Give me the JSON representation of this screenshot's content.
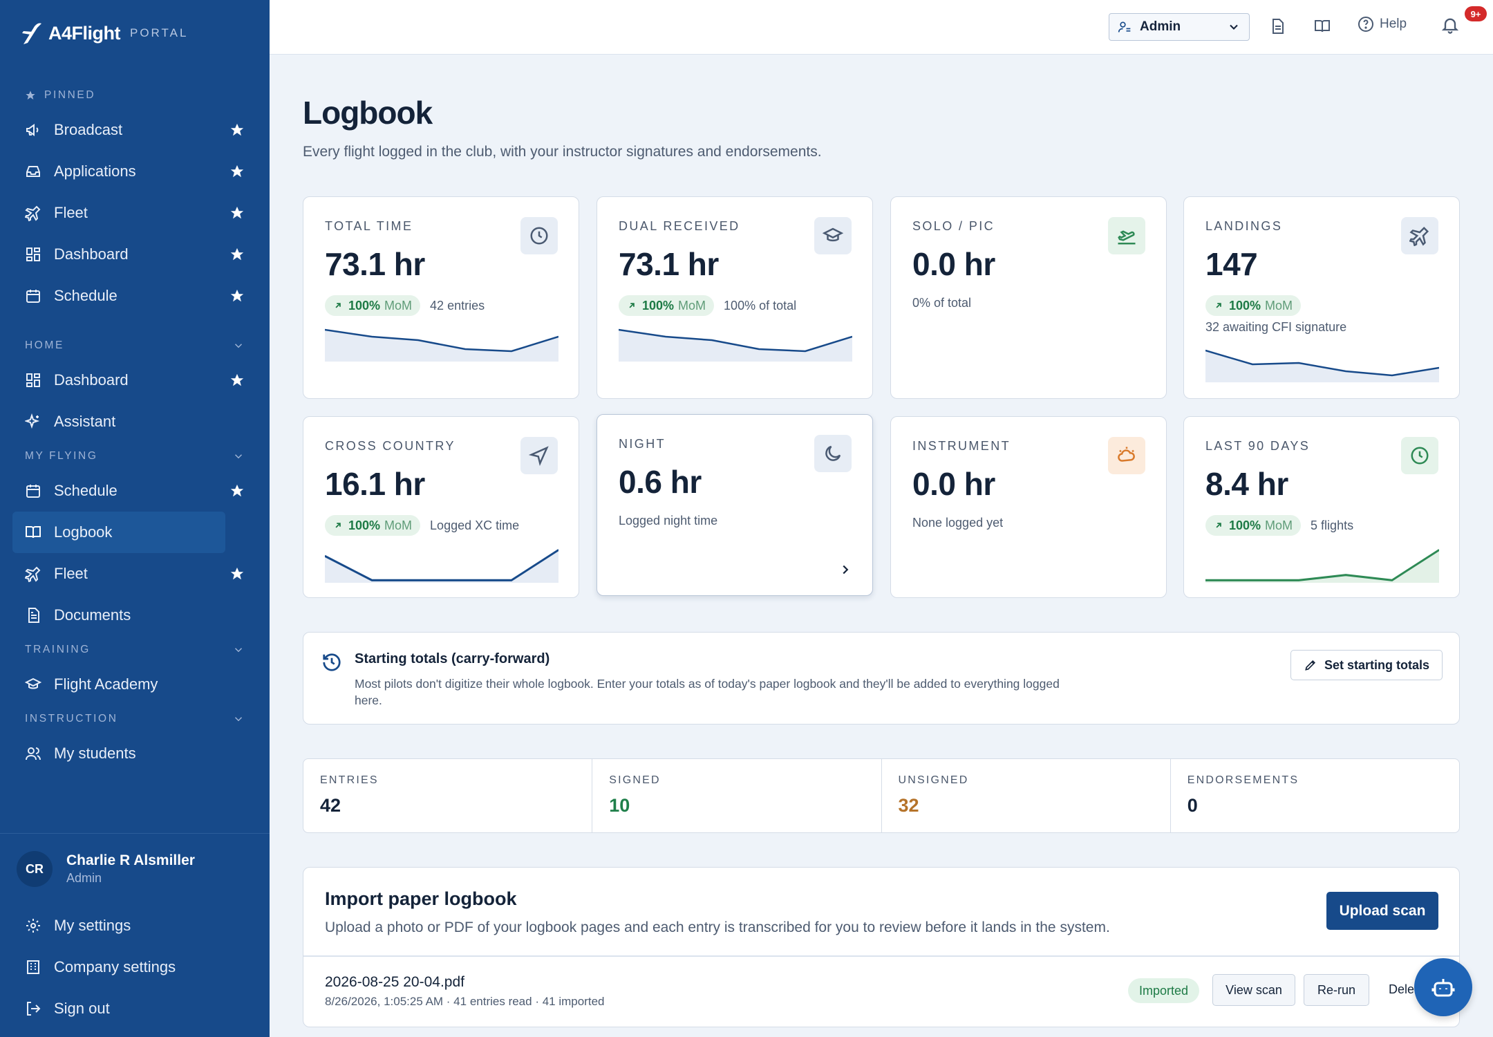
{
  "brand": {
    "name": "A4Flight",
    "suffix": "PORTAL"
  },
  "sidebar": {
    "pinned_header": "PINNED",
    "pinned": [
      {
        "label": "Broadcast",
        "icon": "megaphone-icon"
      },
      {
        "label": "Applications",
        "icon": "inbox-icon"
      },
      {
        "label": "Fleet",
        "icon": "plane-icon"
      },
      {
        "label": "Dashboard",
        "icon": "grid-icon"
      },
      {
        "label": "Schedule",
        "icon": "calendar-icon"
      }
    ],
    "home_header": "HOME",
    "home": [
      {
        "label": "Dashboard",
        "icon": "grid-icon"
      },
      {
        "label": "Assistant",
        "icon": "sparkle-icon"
      }
    ],
    "myflying_header": "MY FLYING",
    "myflying": [
      {
        "label": "Schedule",
        "icon": "calendar-icon"
      },
      {
        "label": "Logbook",
        "icon": "book-icon",
        "active": true
      },
      {
        "label": "Fleet",
        "icon": "plane-icon"
      },
      {
        "label": "Documents",
        "icon": "document-icon"
      }
    ],
    "training_header": "TRAINING",
    "training": [
      {
        "label": "Flight Academy",
        "icon": "graduation-cap-icon"
      }
    ],
    "instruction_header": "INSTRUCTION",
    "instruction": [
      {
        "label": "My students",
        "icon": "users-icon"
      }
    ],
    "user": {
      "initials": "CR",
      "name": "Charlie R Alsmiller",
      "role": "Admin"
    },
    "footer": [
      {
        "label": "My settings",
        "icon": "gear-icon"
      },
      {
        "label": "Company settings",
        "icon": "building-icon"
      },
      {
        "label": "Sign out",
        "icon": "sign-out-icon"
      }
    ]
  },
  "topbar": {
    "role": "Admin",
    "help": "Help",
    "notifications": "9+"
  },
  "page": {
    "title": "Logbook",
    "subtitle": "Every flight logged in the club, with your instructor signatures and endorsements."
  },
  "cards": [
    {
      "title": "TOTAL TIME",
      "value": "73.1 hr",
      "mom_pct": "100%",
      "mom": "MoM",
      "note": "42 entries",
      "icon": "clock-icon"
    },
    {
      "title": "DUAL RECEIVED",
      "value": "73.1 hr",
      "mom_pct": "100%",
      "mom": "MoM",
      "note": "100% of total",
      "icon": "graduation-cap-icon"
    },
    {
      "title": "SOLO / PIC",
      "value": "0.0 hr",
      "note": "0% of total",
      "icon": "plane-takeoff-icon"
    },
    {
      "title": "LANDINGS",
      "value": "147",
      "mom_pct": "100%",
      "mom": "MoM",
      "note": "32 awaiting CFI signature",
      "icon": "plane-icon"
    },
    {
      "title": "CROSS COUNTRY",
      "value": "16.1 hr",
      "mom_pct": "100%",
      "mom": "MoM",
      "note": "Logged XC time",
      "icon": "navigation-icon"
    },
    {
      "title": "NIGHT",
      "value": "0.6 hr",
      "note": "Logged night time",
      "icon": "moon-icon"
    },
    {
      "title": "INSTRUMENT",
      "value": "0.0 hr",
      "note": "None logged yet",
      "icon": "cloud-sun-icon"
    },
    {
      "title": "LAST 90 DAYS",
      "value": "8.4 hr",
      "mom_pct": "100%",
      "mom": "MoM",
      "note": "5 flights",
      "icon": "clock-icon"
    }
  ],
  "carry": {
    "title": "Starting totals (carry-forward)",
    "desc": "Most pilots don't digitize their whole logbook. Enter your totals as of today's paper logbook and they'll be added to everything logged here.",
    "button": "Set starting totals"
  },
  "stats": [
    {
      "label": "ENTRIES",
      "value": "42"
    },
    {
      "label": "SIGNED",
      "value": "10"
    },
    {
      "label": "UNSIGNED",
      "value": "32"
    },
    {
      "label": "ENDORSEMENTS",
      "value": "0"
    }
  ],
  "import": {
    "title": "Import paper logbook",
    "desc": "Upload a photo or PDF of your logbook pages and each entry is transcribed for you to review before it lands in the system.",
    "button": "Upload scan",
    "file": {
      "name": "2026-08-25 20-04.pdf",
      "meta": "8/26/2026, 1:05:25 AM · 41 entries read · 41 imported",
      "status": "Imported"
    },
    "actions": {
      "view": "View scan",
      "rerun": "Re-run",
      "delete": "Dele"
    }
  },
  "colors": {
    "sidebar": "#174a8a",
    "accent": "#174a8a",
    "success": "#1d7a45",
    "warning": "#b5732a",
    "danger": "#d42a2a",
    "sparkline": "#174a8a",
    "sparkline_green": "#2e8a55"
  }
}
